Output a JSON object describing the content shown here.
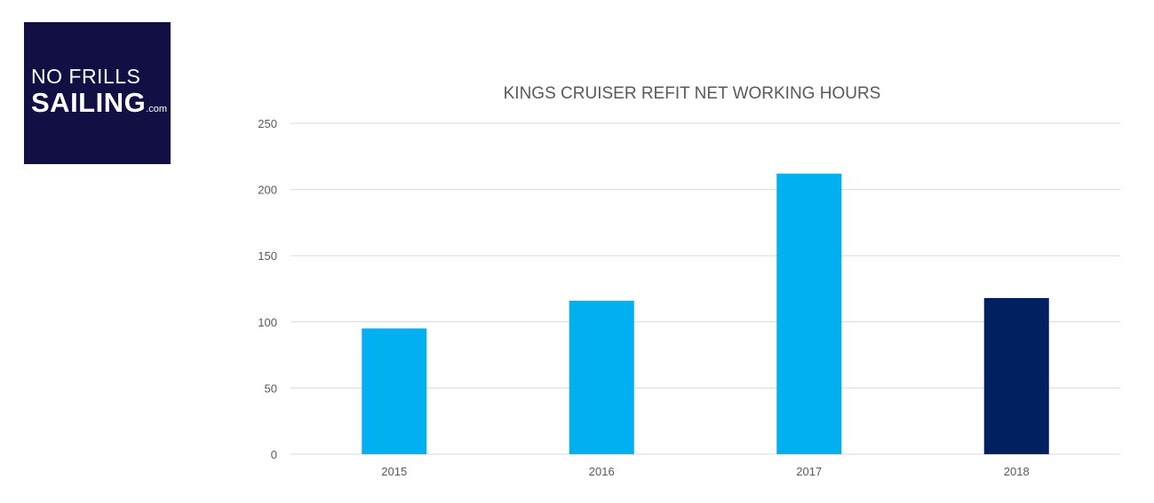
{
  "logo": {
    "line1": "NO FRILLS",
    "line2": "SAILING",
    "domain": ".com"
  },
  "colors": {
    "logo_bg": "#120f45",
    "bar_light": "#00b0f0",
    "bar_dark": "#002060",
    "gridline": "#d9d9d9",
    "text": "#595959"
  },
  "chart_data": {
    "type": "bar",
    "title": "KINGS CRUISER REFIT NET WORKING HOURS",
    "categories": [
      "2015",
      "2016",
      "2017",
      "2018"
    ],
    "values": [
      95,
      116,
      212,
      118
    ],
    "bar_colors": [
      "#00b0f0",
      "#00b0f0",
      "#00b0f0",
      "#002060"
    ],
    "ylim": [
      0,
      250
    ],
    "yticks": [
      0,
      50,
      100,
      150,
      200,
      250
    ],
    "grid": true,
    "legend": "none"
  }
}
